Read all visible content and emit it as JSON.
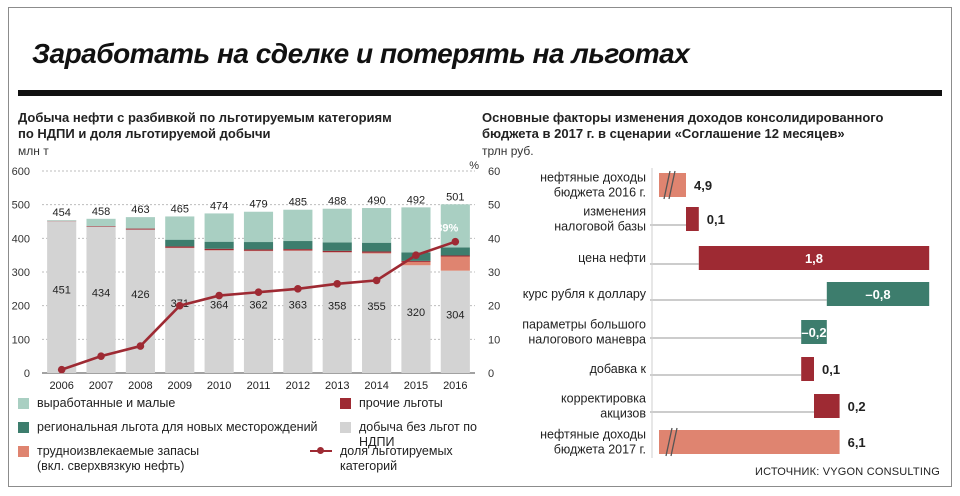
{
  "title": "Заработать на сделке и потерять на льготах",
  "left_chart": {
    "title_line1": "Добыча нефти с разбивкой по льготируемым категориям",
    "title_line2": "по НДПИ и доля льготируемой добычи",
    "unit_left": "млн т",
    "unit_right": "%",
    "last_share_label": "39%"
  },
  "right_chart": {
    "title_line1": "Основные факторы изменения доходов консолидированного",
    "title_line2": "бюджета в 2017 г. в сценарии «Соглашение 12 месяцев»",
    "unit": "трлн руб."
  },
  "legend": {
    "worked_out": "выработанные и малые",
    "other": "прочие льготы",
    "regional": "региональная льгота для новых месторождений",
    "no_benefit": "добыча без льгот по НДПИ",
    "hard_line1": "трудноизвлекаемые запасы",
    "hard_line2": "(вкл. сверхвязкую нефть)",
    "share_line": "доля льготируемых категорий"
  },
  "source": "ИСТОЧНИК: VYGON CONSULTING",
  "colors": {
    "worked_out": "#a9cfc2",
    "regional": "#3d7d6d",
    "other": "#9e2a33",
    "no_benefit": "#d3d3d3",
    "hard": "#df8470",
    "share_line": "#9e2a33",
    "positive_bar": "#9e2a33",
    "negative_bar": "#3d7d6d",
    "base_bar": "#df8470"
  },
  "chart_data": [
    {
      "type": "bar",
      "stacked": true,
      "categories": [
        "2006",
        "2007",
        "2008",
        "2009",
        "2010",
        "2011",
        "2012",
        "2013",
        "2014",
        "2015",
        "2016"
      ],
      "totals": [
        454,
        458,
        463,
        465,
        474,
        479,
        485,
        488,
        490,
        492,
        501
      ],
      "series": [
        {
          "name": "добыча без льгот по НДПИ",
          "values": [
            451,
            434,
            426,
            371,
            364,
            362,
            363,
            358,
            355,
            320,
            304
          ]
        },
        {
          "name": "трудноизвлекаемые запасы (вкл. сверхвязкую нефть)",
          "values": [
            0,
            0,
            0,
            1,
            1,
            1,
            1,
            1,
            2,
            10,
            42
          ]
        },
        {
          "name": "прочие льготы",
          "values": [
            1,
            2,
            3,
            4,
            4,
            4,
            4,
            4,
            4,
            3,
            3
          ]
        },
        {
          "name": "региональная льгота для новых месторождений",
          "values": [
            0,
            0,
            0,
            20,
            21,
            22,
            24,
            25,
            26,
            25,
            24
          ]
        },
        {
          "name": "выработанные и малые",
          "values": [
            2,
            22,
            34,
            69,
            84,
            90,
            93,
            100,
            103,
            134,
            128
          ]
        }
      ],
      "line": {
        "name": "доля льготируемых категорий",
        "values": [
          1,
          5,
          8,
          20,
          23,
          24,
          25,
          26.5,
          27.5,
          35,
          39
        ]
      },
      "ylim": [
        0,
        600
      ],
      "y2lim": [
        0,
        60
      ],
      "yticks": [
        0,
        100,
        200,
        300,
        400,
        500,
        600
      ],
      "y2ticks": [
        0,
        10,
        20,
        30,
        40,
        50,
        60
      ],
      "ylabel": "млн т",
      "y2label": "%"
    },
    {
      "type": "bar",
      "orientation": "horizontal",
      "waterfall": true,
      "categories": [
        [
          "нефтяные доходы",
          "бюджета 2016 г."
        ],
        [
          "изменения",
          "налоговой базы"
        ],
        [
          "цена нефти"
        ],
        [
          "курс рубля к доллару"
        ],
        [
          "параметры большого",
          "налогового маневра"
        ],
        [
          "добавка к"
        ],
        [
          "корректировка",
          "акцизов"
        ],
        [
          "нефтяные доходы",
          "бюджета 2017 г."
        ]
      ],
      "values": [
        4.9,
        0.1,
        1.8,
        -0.8,
        -0.2,
        0.1,
        0.2,
        6.1
      ],
      "labels": [
        "4,9",
        "0,1",
        "1,8",
        "–0,8",
        "–0,2",
        "0,1",
        "0,2",
        "6,1"
      ],
      "label_inside": [
        false,
        false,
        true,
        true,
        true,
        false,
        false,
        false
      ],
      "kind": [
        "base",
        "delta",
        "delta",
        "delta",
        "delta",
        "delta",
        "delta",
        "base"
      ],
      "axis_break": true,
      "unit": "трлн руб."
    }
  ]
}
